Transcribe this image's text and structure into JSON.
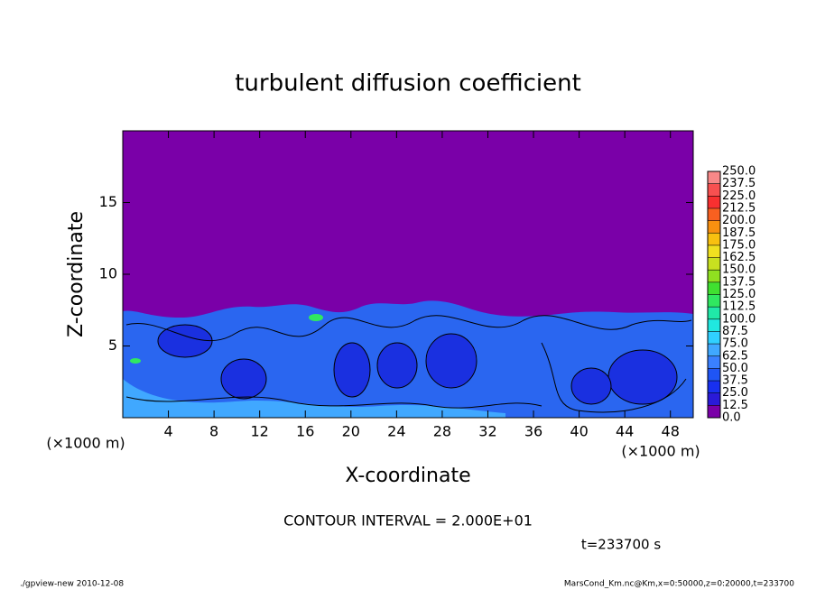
{
  "chart_data": {
    "type": "contour",
    "title": "turbulent diffusion coefficient",
    "x_label": "X-coordinate",
    "y_label": "Z-coordinate",
    "x_unit": "(×1000 m)",
    "xlim": [
      0,
      50
    ],
    "xticks": [
      4,
      8,
      12,
      16,
      20,
      24,
      28,
      32,
      36,
      40,
      44,
      48
    ],
    "ylim": [
      0,
      20
    ],
    "yticks": [
      5,
      10,
      15
    ],
    "colorbar": {
      "levels": [
        {
          "value": 0,
          "label": "0.0"
        },
        12.5,
        {
          "value": 25,
          "label": "25.0"
        },
        37.5,
        {
          "value": 50,
          "label": "50.0"
        },
        62.5,
        {
          "value": 75,
          "label": "75.0"
        },
        87.5,
        {
          "value": 100,
          "label": "100.0"
        },
        112.5,
        {
          "value": 125,
          "label": "125.0"
        },
        137.5,
        {
          "value": 150,
          "label": "150.0"
        },
        162.5,
        {
          "value": 175,
          "label": "175.0"
        },
        187.5,
        {
          "value": 200,
          "label": "200.0"
        },
        212.5,
        {
          "value": 225,
          "label": "225.0"
        },
        237.5,
        {
          "value": 250,
          "label": "250.0"
        }
      ],
      "colors": [
        "#7a00a8",
        "#2a1ad8",
        "#1830f0",
        "#1f55f5",
        "#3a80ff",
        "#40a8ff",
        "#30d0ff",
        "#20e8e0",
        "#20e8a8",
        "#30e860",
        "#40e030",
        "#90e020",
        "#c8e020",
        "#f0e020",
        "#f8c010",
        "#f89010",
        "#f86020",
        "#f83030",
        "#f85050",
        "#f88888"
      ]
    },
    "contour_interval": "CONTOUR INTERVAL = 2.000E+01",
    "time_label": "t=233700 s",
    "footer_left": "./gpview-new  2010-12-08",
    "footer_right": "MarsCond_Km.nc@Km,x=0:50000,z=0:20000,t=233700"
  }
}
